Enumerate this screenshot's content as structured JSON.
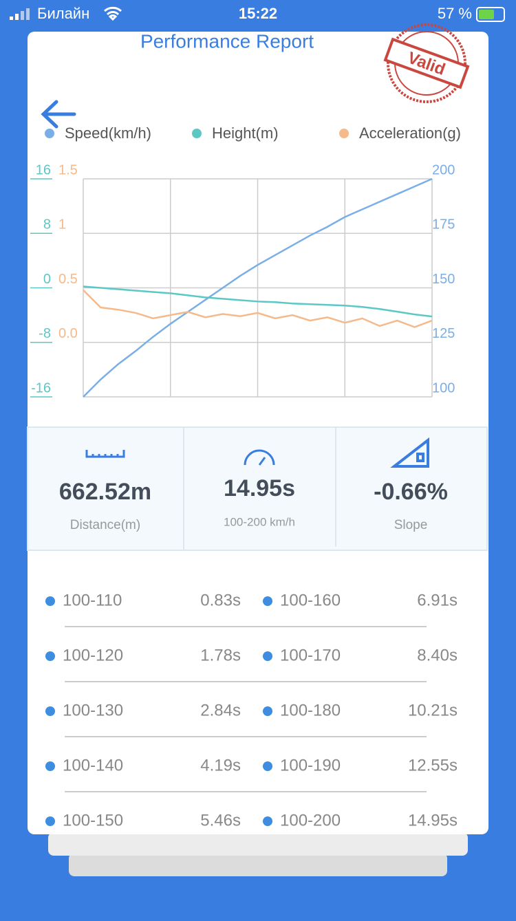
{
  "status_bar": {
    "carrier": "Билайн",
    "time": "15:22",
    "battery": "57 %"
  },
  "header": {
    "title": "Performance Report",
    "stamp": "Valid"
  },
  "chart_data": {
    "type": "line",
    "series": [
      {
        "name": "Speed(km/h)",
        "color": "#7aaee6",
        "axis": "y2",
        "values": [
          100,
          108,
          115,
          121,
          127.5,
          133.5,
          139,
          144.5,
          150,
          155.5,
          160.5,
          165,
          169.5,
          174,
          178,
          182.5,
          186,
          189.5,
          193,
          196.5,
          200
        ]
      },
      {
        "name": "Height(m)",
        "color": "#5bc8c6",
        "axis": "y",
        "values": [
          0.2,
          0.0,
          -0.2,
          -0.4,
          -0.6,
          -0.8,
          -1.1,
          -1.4,
          -1.6,
          -1.8,
          -2.0,
          -2.1,
          -2.3,
          -2.4,
          -2.5,
          -2.6,
          -2.8,
          -3.1,
          -3.5,
          -3.9,
          -4.2
        ]
      },
      {
        "name": "Acceleration(g)",
        "color": "#f5b98a",
        "axis": "y3",
        "values": [
          0.48,
          0.32,
          0.3,
          0.27,
          0.22,
          0.25,
          0.28,
          0.23,
          0.26,
          0.24,
          0.27,
          0.22,
          0.25,
          0.2,
          0.23,
          0.18,
          0.22,
          0.15,
          0.2,
          0.14,
          0.2
        ]
      }
    ],
    "ylim": [
      -16,
      16
    ],
    "yticks": [
      -16,
      -8,
      0,
      8,
      16
    ],
    "y3lim": [
      -0.5,
      1.5
    ],
    "y3ticks": [
      {
        "value": 0,
        "label": "0.0"
      },
      0.5,
      1,
      1.5
    ],
    "y2lim": [
      100,
      200
    ],
    "y2ticks": [
      100,
      125,
      150,
      175,
      200
    ],
    "grid": true
  },
  "stats": [
    {
      "value": "662.52m",
      "label": "Distance(m)"
    },
    {
      "value": "14.95s",
      "label": "100-200 km/h"
    },
    {
      "value": "-0.66%",
      "label": "Slope"
    }
  ],
  "times": [
    {
      "range": "100-110",
      "time": "0.83s"
    },
    {
      "range": "100-120",
      "time": "1.78s"
    },
    {
      "range": "100-130",
      "time": "2.84s"
    },
    {
      "range": "100-140",
      "time": "4.19s"
    },
    {
      "range": "100-150",
      "time": "5.46s"
    },
    {
      "range": "100-160",
      "time": "6.91s"
    },
    {
      "range": "100-170",
      "time": "8.40s"
    },
    {
      "range": "100-180",
      "time": "10.21s"
    },
    {
      "range": "100-190",
      "time": "12.55s"
    },
    {
      "range": "100-200",
      "time": "14.95s"
    }
  ]
}
